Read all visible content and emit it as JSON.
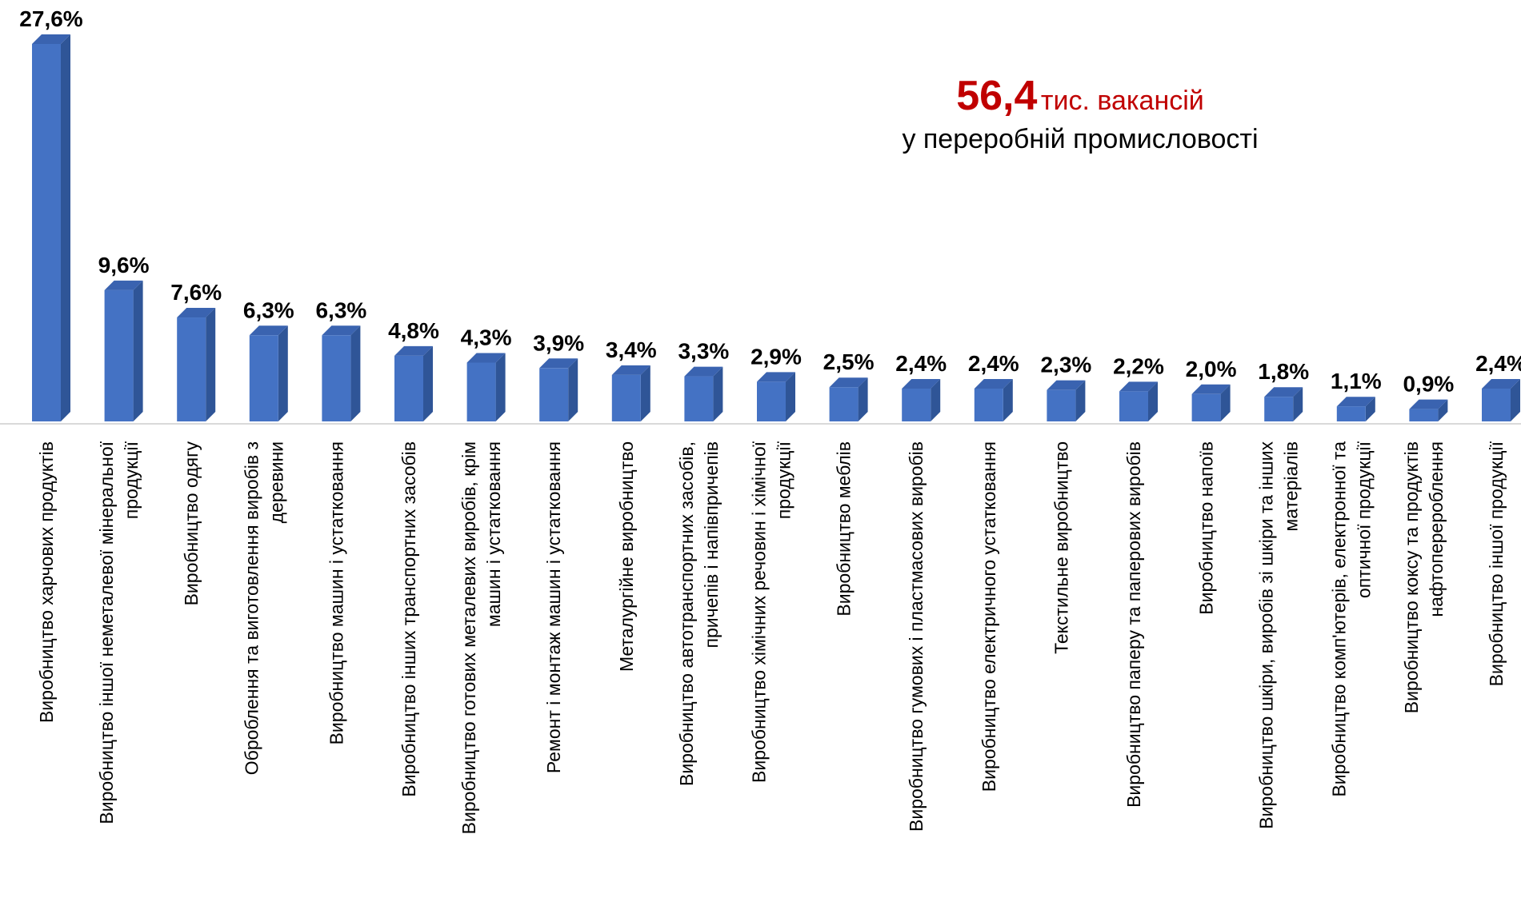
{
  "annotation": {
    "number": "56,4",
    "unit": "тис. вакансій",
    "subtitle": "у переробній промисловості"
  },
  "colors": {
    "bar_front": "#4472c4",
    "bar_side": "#2f5597",
    "bar_top": "#3a63b0",
    "axis": "#d9d9d9",
    "highlight": "#c00000"
  },
  "chart_data": {
    "type": "bar",
    "categories": [
      "Виробництво харчових продуктів",
      "Виробництво іншої неметалевої мінеральної продукції",
      "Виробництво одягу",
      "Оброблення та виготовлення виробів з деревини",
      "Виробництво машин і устатковання",
      "Виробництво інших транспортних засобів",
      "Виробництво готових металевих виробів, крім машин і устатковання",
      "Ремонт і монтаж машин і устатковання",
      "Металургійне виробництво",
      "Виробництво автотранспортних засобів, причепів і напівпричепів",
      "Виробництво хімічних речовин і хімічної продукції",
      "Виробництво меблів",
      "Виробництво гумових і пластмасових виробів",
      "Виробництво електричного устатковання",
      "Текстильне виробництво",
      "Виробництво паперу та паперових виробів",
      "Виробництво напоїв",
      "Виробництво шкіри, виробів зі шкіри та інших матеріалів",
      "Виробництво комп'ютерів, електронної та оптичної продукції",
      "Виробництво коксу та продуктів нафтоперероблення",
      "Виробництво іншої продукції"
    ],
    "category_lines": [
      [
        "Виробництво харчових продуктів"
      ],
      [
        "Виробництво іншої неметалевої мінеральної",
        "продукції"
      ],
      [
        "Виробництво одягу"
      ],
      [
        "Оброблення та виготовлення виробів з",
        "деревини"
      ],
      [
        "Виробництво машин і устатковання"
      ],
      [
        "Виробництво інших транспортних засобів"
      ],
      [
        "Виробництво готових металевих виробів, крім",
        "машин і устатковання"
      ],
      [
        "Ремонт і монтаж машин і устатковання"
      ],
      [
        "Металургійне виробництво"
      ],
      [
        "Виробництво автотранспортних засобів,",
        "причепів і напівпричепів"
      ],
      [
        "Виробництво хімічних речовин і хімічної",
        "продукції"
      ],
      [
        "Виробництво меблів"
      ],
      [
        "Виробництво гумових і пластмасових виробів"
      ],
      [
        "Виробництво електричного устатковання"
      ],
      [
        "Текстильне виробництво"
      ],
      [
        "Виробництво паперу та паперових виробів"
      ],
      [
        "Виробництво напоїв"
      ],
      [
        "Виробництво шкіри, виробів зі шкіри та інших",
        "матеріалів"
      ],
      [
        "Виробництво комп'ютерів, електронної та",
        "оптичної продукції"
      ],
      [
        "Виробництво коксу та продуктів",
        "нафтоперероблення"
      ],
      [
        "Виробництво іншої продукції"
      ]
    ],
    "values": [
      27.6,
      9.6,
      7.6,
      6.3,
      6.3,
      4.8,
      4.3,
      3.9,
      3.4,
      3.3,
      2.9,
      2.5,
      2.4,
      2.4,
      2.3,
      2.2,
      2.0,
      1.8,
      1.1,
      0.9,
      2.4
    ],
    "value_labels": [
      "27,6%",
      "9,6%",
      "7,6%",
      "6,3%",
      "6,3%",
      "4,8%",
      "4,3%",
      "3,9%",
      "3,4%",
      "3,3%",
      "2,9%",
      "2,5%",
      "2,4%",
      "2,4%",
      "2,3%",
      "2,2%",
      "2,0%",
      "1,8%",
      "1,1%",
      "0,9%",
      "2,4%"
    ],
    "unit": "%",
    "ylim": [
      0,
      27.6
    ],
    "grid": false,
    "legend": "none",
    "style": "3d-column"
  }
}
